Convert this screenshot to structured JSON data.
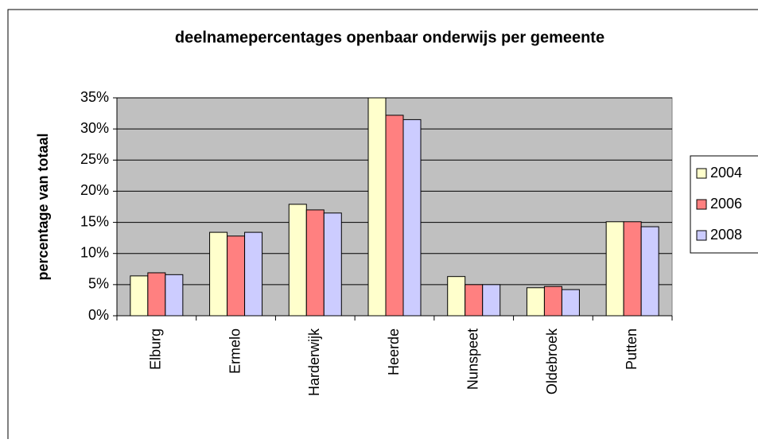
{
  "chart_data": {
    "type": "bar",
    "title": "deelnamepercentages openbaar onderwijs per gemeente",
    "y_label": "percentage van totaal",
    "categories": [
      "Elburg",
      "Ermelo",
      "Harderwijk",
      "Heerde",
      "Nunspeet",
      "Oldebroek",
      "Putten"
    ],
    "series": [
      {
        "name": "2004",
        "color": "#ffffcc",
        "values": [
          6.4,
          13.4,
          17.9,
          35.0,
          6.3,
          4.5,
          15.1
        ]
      },
      {
        "name": "2006",
        "color": "#ff8080",
        "values": [
          6.9,
          12.8,
          17.0,
          32.2,
          5.0,
          4.7,
          15.1
        ]
      },
      {
        "name": "2008",
        "color": "#ccccff",
        "values": [
          6.6,
          13.4,
          16.5,
          31.5,
          5.0,
          4.2,
          14.3
        ]
      }
    ],
    "ylim": [
      0,
      35
    ],
    "yticks": [
      {
        "value": 0,
        "label": "0%"
      },
      {
        "value": 5,
        "label": "5%"
      },
      {
        "value": 10,
        "label": "10%"
      },
      {
        "value": 15,
        "label": "15%"
      },
      {
        "value": 20,
        "label": "20%"
      },
      {
        "value": 25,
        "label": "25%"
      },
      {
        "value": 30,
        "label": "30%"
      },
      {
        "value": 35,
        "label": "35%"
      }
    ],
    "grid": true,
    "legend": "right"
  }
}
